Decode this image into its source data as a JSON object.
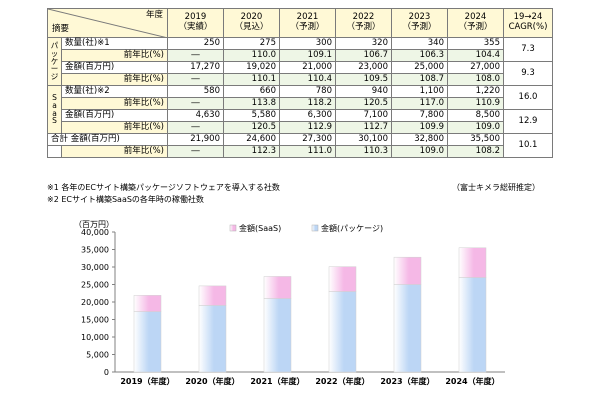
{
  "table": {
    "corner_year": "年度",
    "corner_item": "摘要",
    "headers": [
      {
        "year": "2019",
        "note": "（実績）"
      },
      {
        "year": "2020",
        "note": "（見込）"
      },
      {
        "year": "2021",
        "note": "（予測）"
      },
      {
        "year": "2022",
        "note": "（予測）"
      },
      {
        "year": "2023",
        "note": "（予測）"
      },
      {
        "year": "2024",
        "note": "（予測）"
      }
    ],
    "cagr_header_1": "19→24",
    "cagr_header_2": "CAGR(%)",
    "yoy_label": "前年比(%)",
    "groups": [
      {
        "label": "パッケージ",
        "rows": [
          {
            "metric": "数量(社)※1",
            "values": [
              "250",
              "275",
              "300",
              "320",
              "340",
              "355"
            ],
            "yoy": [
              "―",
              "110.0",
              "109.1",
              "106.7",
              "106.3",
              "104.4"
            ],
            "cagr": "7.3"
          },
          {
            "metric": "金額(百万円)",
            "values": [
              "17,270",
              "19,020",
              "21,000",
              "23,000",
              "25,000",
              "27,000"
            ],
            "yoy": [
              "―",
              "110.1",
              "110.4",
              "109.5",
              "108.7",
              "108.0"
            ],
            "cagr": "9.3"
          }
        ]
      },
      {
        "label": "SaaS",
        "rows": [
          {
            "metric": "数量(社)※2",
            "values": [
              "580",
              "660",
              "780",
              "940",
              "1,100",
              "1,220"
            ],
            "yoy": [
              "―",
              "113.8",
              "118.2",
              "120.5",
              "117.0",
              "110.9"
            ],
            "cagr": "16.0"
          },
          {
            "metric": "金額(百万円)",
            "values": [
              "4,630",
              "5,580",
              "6,300",
              "7,100",
              "7,800",
              "8,500"
            ],
            "yoy": [
              "―",
              "120.5",
              "112.9",
              "112.7",
              "109.9",
              "109.0"
            ],
            "cagr": "12.9"
          }
        ]
      }
    ],
    "total": {
      "label": "合計 金額(百万円)",
      "values": [
        "21,900",
        "24,600",
        "27,300",
        "30,100",
        "32,800",
        "35,500"
      ],
      "yoy": [
        "―",
        "112.3",
        "111.0",
        "110.3",
        "109.0",
        "108.2"
      ],
      "cagr": "10.1"
    }
  },
  "notes": {
    "note1": "※1 各年のECサイト構築パッケージソフトウェアを導入する社数",
    "note2": "※2 ECサイト構築SaaSの各年時の稼働社数",
    "source": "（富士キメラ総研推定）"
  },
  "colors": {
    "header_bg": "#fff9d6",
    "yoy_bg": "#eef6e6",
    "package_fill": "#bcd6f5",
    "saas_fill": "#f5b8e6"
  },
  "chart_data": {
    "type": "bar",
    "stacked": true,
    "ylabel": "（百万円）",
    "ylim": [
      0,
      40000
    ],
    "ytick_step": 5000,
    "categories": [
      "2019（年度）",
      "2020（年度）",
      "2021（年度）",
      "2022（年度）",
      "2023（年度）",
      "2024（年度）"
    ],
    "series": [
      {
        "name": "金額(パッケージ)",
        "values": [
          17270,
          19020,
          21000,
          23000,
          25000,
          27000
        ],
        "color": "#bcd6f5"
      },
      {
        "name": "金額(SaaS)",
        "values": [
          4630,
          5580,
          6300,
          7100,
          7800,
          8500
        ],
        "color": "#f5b8e6"
      }
    ],
    "legend": "top",
    "grid": false
  }
}
